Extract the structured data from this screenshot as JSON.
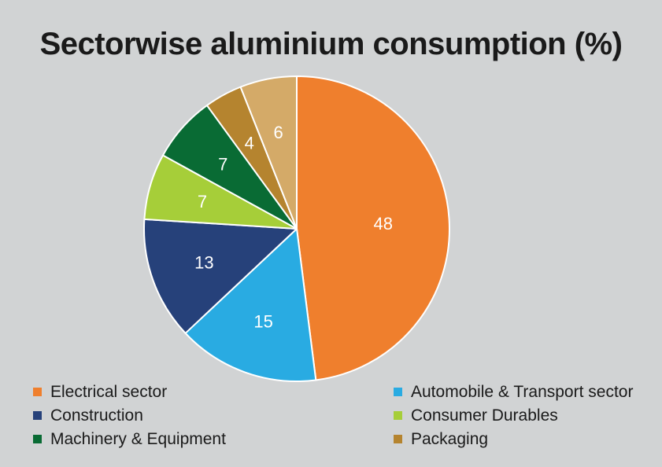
{
  "chart_data": {
    "type": "pie",
    "title": "Sectorwise aluminium consumption (%)",
    "slices": [
      {
        "label": "Electrical sector",
        "value": 48,
        "color": "#ef7f2d"
      },
      {
        "label": "Automobile & Transport sector",
        "value": 15,
        "color": "#29abe2"
      },
      {
        "label": "Construction",
        "value": 13,
        "color": "#26417a"
      },
      {
        "label": "Consumer Durables",
        "value": 7,
        "color": "#a6ce39"
      },
      {
        "label": "Machinery & Equipment",
        "value": 7,
        "color": "#096b34"
      },
      {
        "label": "Packaging",
        "value": 4,
        "color": "#b5842f"
      },
      {
        "label": "",
        "value": 6,
        "color": "#d4aa68"
      }
    ],
    "legend_position": "bottom"
  }
}
